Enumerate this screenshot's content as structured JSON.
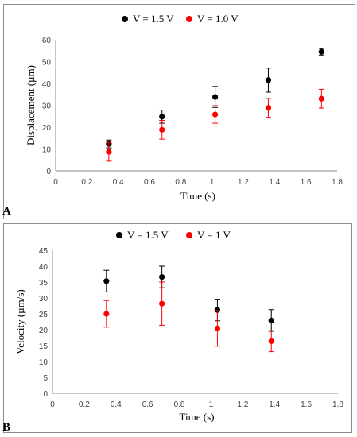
{
  "chart_data": [
    {
      "type": "scatter",
      "panel_label": "A",
      "xlabel": "Time (s)",
      "ylabel": "Displacement (µm)",
      "xlim": [
        0,
        1.8
      ],
      "ylim": [
        0,
        60
      ],
      "xticks": [
        0,
        0.2,
        0.4,
        0.6,
        0.8,
        1,
        1.2,
        1.4,
        1.6,
        1.8
      ],
      "xtick_labels": [
        "0",
        "0.2",
        "0.4",
        "0.6",
        "0.8",
        "1",
        "1.2",
        "1.4",
        "1.6",
        "1.8"
      ],
      "yticks": [
        0,
        10,
        20,
        30,
        40,
        50,
        60
      ],
      "ytick_labels": [
        "0",
        "10",
        "20",
        "30",
        "40",
        "50",
        "60"
      ],
      "grid": false,
      "legend_position": "top",
      "series": [
        {
          "name": "V = 1.5 V",
          "color": "#000000",
          "x": [
            0.34,
            0.68,
            1.02,
            1.36,
            1.7
          ],
          "y": [
            12.3,
            24.8,
            33.8,
            41.5,
            54.5
          ],
          "error": [
            1.8,
            3.0,
            4.8,
            5.5,
            1.5
          ]
        },
        {
          "name": "V = 1.0 V",
          "color": "#ff0000",
          "x": [
            0.34,
            0.68,
            1.02,
            1.36,
            1.7
          ],
          "y": [
            8.7,
            18.8,
            25.8,
            28.8,
            33.0
          ],
          "error": [
            4.3,
            4.3,
            4.0,
            4.3,
            4.3
          ]
        }
      ]
    },
    {
      "type": "scatter",
      "panel_label": "B",
      "xlabel": "Time (s)",
      "ylabel": "Velocity (µm/s)",
      "xlim": [
        0,
        1.8
      ],
      "ylim": [
        0,
        45
      ],
      "xticks": [
        0,
        0.2,
        0.4,
        0.6,
        0.8,
        1,
        1.2,
        1.4,
        1.6,
        1.8
      ],
      "xtick_labels": [
        "0",
        "0.2",
        "0.4",
        "0.6",
        "0.8",
        "1",
        "1.2",
        "1.4",
        "1.6",
        "1.8"
      ],
      "yticks": [
        0,
        5,
        10,
        15,
        20,
        25,
        30,
        35,
        40,
        45
      ],
      "ytick_labels": [
        "0",
        "5",
        "10",
        "15",
        "20",
        "25",
        "30",
        "35",
        "40",
        "45"
      ],
      "grid": false,
      "legend_position": "top",
      "series": [
        {
          "name": "V = 1.5 V",
          "color": "#000000",
          "x": [
            0.34,
            0.69,
            1.04,
            1.38
          ],
          "y": [
            35.3,
            36.6,
            26.2,
            22.9
          ],
          "error": [
            3.4,
            3.4,
            3.4,
            3.4
          ]
        },
        {
          "name": "V = 1 V",
          "color": "#ff0000",
          "x": [
            0.34,
            0.69,
            1.04,
            1.38
          ],
          "y": [
            25.0,
            28.2,
            20.4,
            16.4
          ],
          "error": [
            4.2,
            6.8,
            5.6,
            3.3
          ]
        }
      ]
    }
  ]
}
